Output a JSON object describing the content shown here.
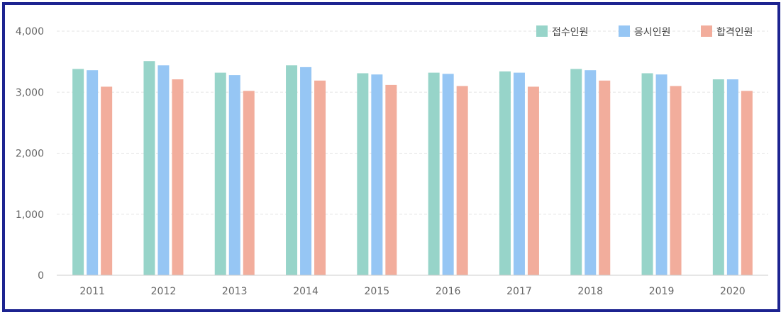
{
  "chart_data": {
    "type": "bar",
    "title": "",
    "xlabel": "",
    "ylabel": "",
    "ylim": [
      0,
      4000
    ],
    "yticks": [
      0,
      1000,
      2000,
      3000,
      4000
    ],
    "ytick_labels": [
      "0",
      "1,000",
      "2,000",
      "3,000",
      "4,000"
    ],
    "categories": [
      "2011",
      "2012",
      "2013",
      "2014",
      "2015",
      "2016",
      "2017",
      "2018",
      "2019",
      "2020"
    ],
    "series": [
      {
        "name": "접수인원",
        "color": "#97d4c9",
        "values": [
          3380,
          3510,
          3320,
          3440,
          3310,
          3320,
          3340,
          3380,
          3310,
          3210
        ]
      },
      {
        "name": "응시인원",
        "color": "#96c6f4",
        "values": [
          3360,
          3440,
          3280,
          3410,
          3290,
          3300,
          3320,
          3360,
          3290,
          3210
        ]
      },
      {
        "name": "합격인원",
        "color": "#f2ad9c",
        "values": [
          3090,
          3210,
          3020,
          3190,
          3120,
          3100,
          3090,
          3190,
          3100,
          3020
        ]
      }
    ],
    "legend": "top-right",
    "grid": true
  }
}
